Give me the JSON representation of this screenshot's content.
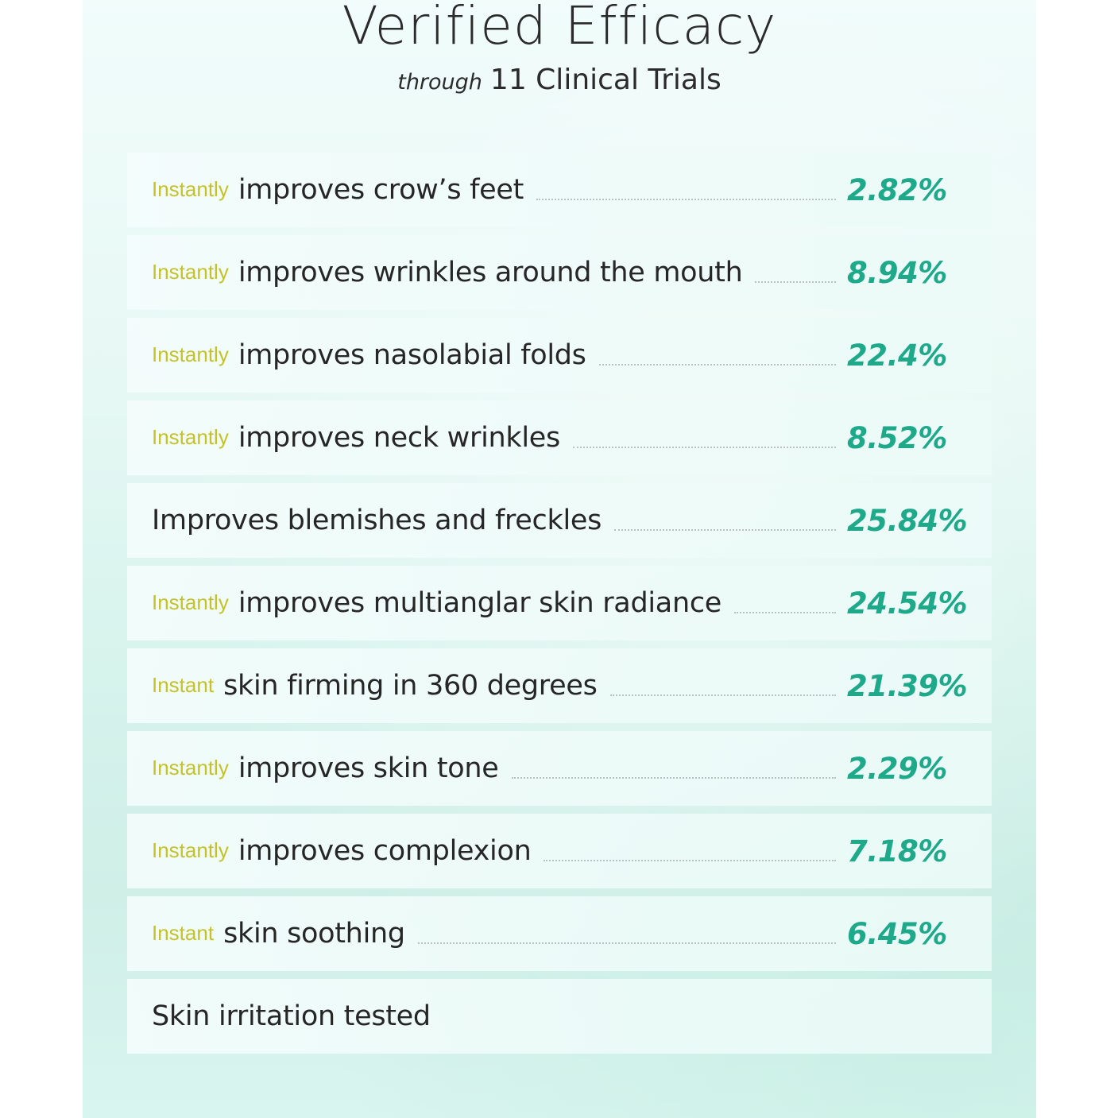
{
  "header": {
    "title": "Verified Efficacy",
    "subtitle_italic": "through",
    "subtitle": "11 Clinical Trials"
  },
  "colors": {
    "prefix": "#c4c22a",
    "value": "#1fa98b",
    "text": "#262626",
    "background": "#d6f3ec"
  },
  "rows": [
    {
      "prefix": "Instantly",
      "label": "improves crow’s feet",
      "value": "2.82%"
    },
    {
      "prefix": "Instantly",
      "label": "improves wrinkles around the mouth",
      "value": "8.94%"
    },
    {
      "prefix": "Instantly",
      "label": "improves nasolabial folds",
      "value": "22.4%"
    },
    {
      "prefix": "Instantly",
      "label": "improves neck wrinkles",
      "value": "8.52%"
    },
    {
      "prefix": "",
      "label": "Improves blemishes and freckles",
      "value": "25.84%"
    },
    {
      "prefix": "Instantly",
      "label": "improves multianglar skin radiance",
      "value": "24.54%"
    },
    {
      "prefix": "Instant",
      "label": "skin firming in 360 degrees",
      "value": "21.39%"
    },
    {
      "prefix": "Instantly",
      "label": "improves skin tone",
      "value": "2.29%"
    },
    {
      "prefix": "Instantly",
      "label": "improves complexion",
      "value": "7.18%"
    },
    {
      "prefix": "Instant",
      "label": "skin soothing",
      "value": "6.45%"
    },
    {
      "prefix": "",
      "label": "Skin irritation tested",
      "value": ""
    }
  ]
}
